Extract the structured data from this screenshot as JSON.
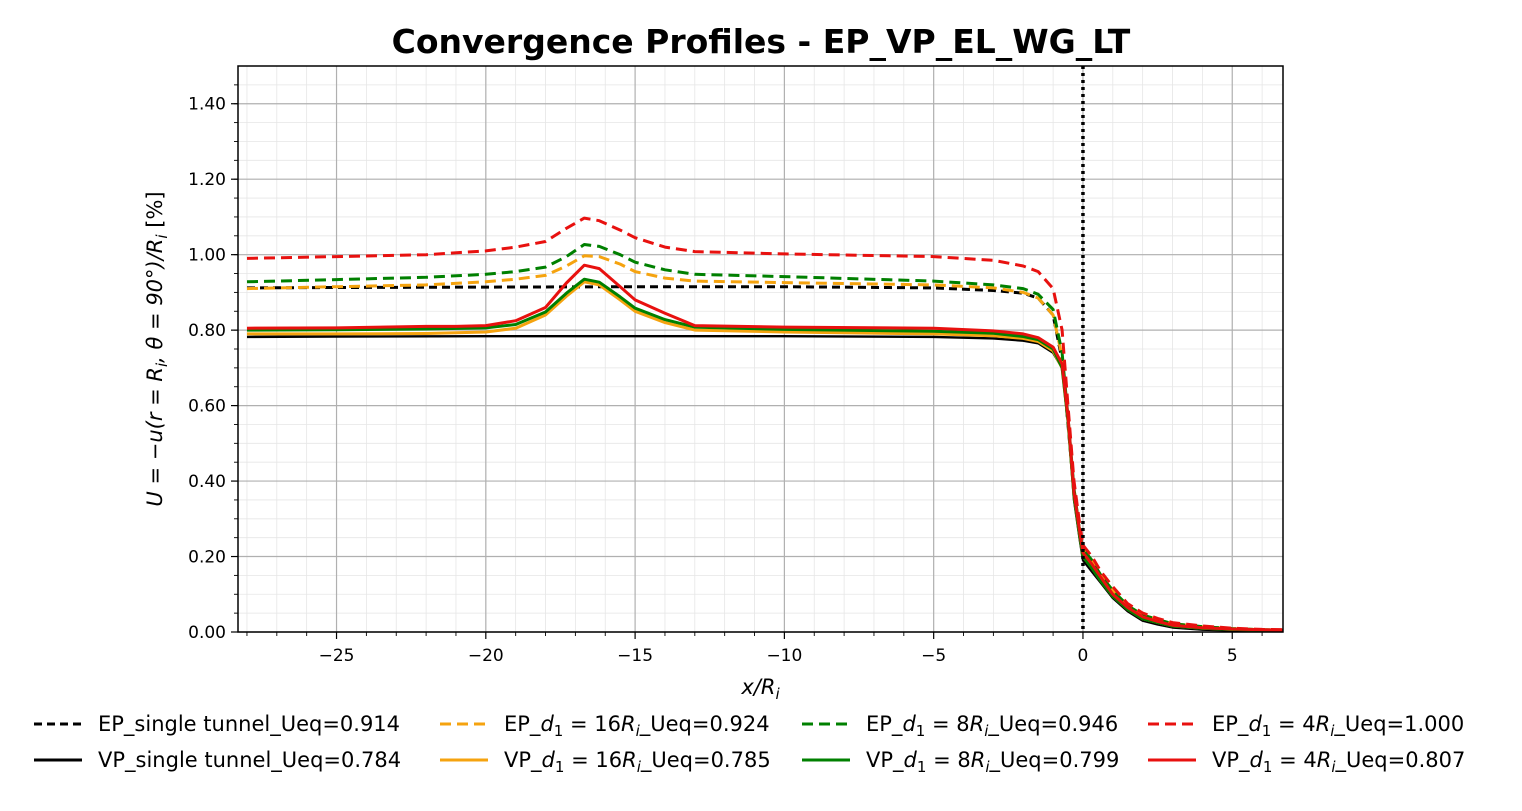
{
  "chart_data": {
    "type": "line",
    "title": "Convergence Profiles - EP_VP_EL_WG_LT",
    "xlabel": "x/R_i",
    "ylabel": "U = −u(r = R_i, θ = 90°)/R_i [%]",
    "xlim": [
      -28.3,
      6.7
    ],
    "ylim": [
      0.0,
      1.5
    ],
    "xticks": [
      -25,
      -20,
      -15,
      -10,
      -5,
      0,
      5
    ],
    "xtick_labels": [
      "−25",
      "−20",
      "−15",
      "−10",
      "−5",
      "0",
      "5"
    ],
    "yticks": [
      0.0,
      0.2,
      0.4,
      0.6,
      0.8,
      1.0,
      1.2,
      1.4
    ],
    "ytick_labels": [
      "0.00",
      "0.20",
      "0.40",
      "0.60",
      "0.80",
      "1.00",
      "1.20",
      "1.40"
    ],
    "grid": "major and minor",
    "vertical_marker": {
      "x": 0,
      "style": "dotted",
      "color": "#000000"
    },
    "legend_position": "bottom, 4 columns",
    "series": [
      {
        "name": "EP_single tunnel_Ueq=0.914",
        "color": "#000000",
        "style": "dashed",
        "points": [
          [
            -28,
            0.912
          ],
          [
            -25,
            0.913
          ],
          [
            -20,
            0.914
          ],
          [
            -15,
            0.915
          ],
          [
            -10,
            0.915
          ],
          [
            -5,
            0.912
          ],
          [
            -3,
            0.905
          ],
          [
            -2,
            0.898
          ],
          [
            -1.5,
            0.885
          ],
          [
            -1,
            0.84
          ],
          [
            -0.7,
            0.72
          ],
          [
            -0.5,
            0.55
          ],
          [
            -0.3,
            0.37
          ],
          [
            -0.1,
            0.25
          ],
          [
            0,
            0.21
          ],
          [
            0.3,
            0.18
          ],
          [
            0.6,
            0.14
          ],
          [
            1,
            0.1
          ],
          [
            1.5,
            0.065
          ],
          [
            2,
            0.04
          ],
          [
            2.5,
            0.03
          ],
          [
            3,
            0.02
          ],
          [
            4,
            0.012
          ],
          [
            5,
            0.008
          ],
          [
            6,
            0.005
          ],
          [
            6.7,
            0.004
          ]
        ]
      },
      {
        "name": "VP_single tunnel_Ueq=0.784",
        "color": "#000000",
        "style": "solid",
        "points": [
          [
            -28,
            0.782
          ],
          [
            -25,
            0.783
          ],
          [
            -20,
            0.784
          ],
          [
            -15,
            0.784
          ],
          [
            -10,
            0.784
          ],
          [
            -5,
            0.782
          ],
          [
            -3,
            0.778
          ],
          [
            -2,
            0.772
          ],
          [
            -1.5,
            0.765
          ],
          [
            -1,
            0.74
          ],
          [
            -0.7,
            0.7
          ],
          [
            -0.5,
            0.56
          ],
          [
            -0.3,
            0.35
          ],
          [
            -0.1,
            0.24
          ],
          [
            0,
            0.19
          ],
          [
            0.3,
            0.16
          ],
          [
            0.6,
            0.13
          ],
          [
            1,
            0.09
          ],
          [
            1.5,
            0.055
          ],
          [
            2,
            0.03
          ],
          [
            2.5,
            0.02
          ],
          [
            3,
            0.012
          ],
          [
            4,
            0.006
          ],
          [
            5,
            0.004
          ],
          [
            6,
            0.003
          ],
          [
            6.7,
            0.002
          ]
        ]
      },
      {
        "name": "EP_d_1 = 16R_i_Ueq=0.924",
        "color": "#f5a30f",
        "style": "dashed",
        "points": [
          [
            -28,
            0.91
          ],
          [
            -25,
            0.915
          ],
          [
            -22,
            0.92
          ],
          [
            -20,
            0.928
          ],
          [
            -19,
            0.935
          ],
          [
            -18,
            0.945
          ],
          [
            -17.3,
            0.97
          ],
          [
            -16.7,
            0.997
          ],
          [
            -16.2,
            0.995
          ],
          [
            -15.5,
            0.975
          ],
          [
            -15,
            0.955
          ],
          [
            -14,
            0.938
          ],
          [
            -13,
            0.93
          ],
          [
            -10,
            0.926
          ],
          [
            -5,
            0.92
          ],
          [
            -3,
            0.912
          ],
          [
            -2,
            0.9
          ],
          [
            -1.5,
            0.885
          ],
          [
            -1,
            0.84
          ],
          [
            -0.7,
            0.73
          ],
          [
            -0.5,
            0.56
          ],
          [
            -0.3,
            0.38
          ],
          [
            -0.1,
            0.26
          ],
          [
            0,
            0.22
          ],
          [
            0.3,
            0.19
          ],
          [
            0.6,
            0.15
          ],
          [
            1,
            0.11
          ],
          [
            1.5,
            0.07
          ],
          [
            2,
            0.045
          ],
          [
            2.5,
            0.033
          ],
          [
            3,
            0.022
          ],
          [
            4,
            0.014
          ],
          [
            5,
            0.009
          ],
          [
            6,
            0.006
          ],
          [
            6.7,
            0.005
          ]
        ]
      },
      {
        "name": "EP_d_1 = 8R_i_Ueq=0.946",
        "color": "#008000",
        "style": "dashed",
        "points": [
          [
            -28,
            0.928
          ],
          [
            -25,
            0.934
          ],
          [
            -22,
            0.94
          ],
          [
            -20,
            0.948
          ],
          [
            -19,
            0.955
          ],
          [
            -18,
            0.967
          ],
          [
            -17.3,
            0.995
          ],
          [
            -16.7,
            1.027
          ],
          [
            -16.2,
            1.022
          ],
          [
            -15.5,
            1.0
          ],
          [
            -15,
            0.98
          ],
          [
            -14,
            0.96
          ],
          [
            -13,
            0.948
          ],
          [
            -10,
            0.942
          ],
          [
            -5,
            0.93
          ],
          [
            -3,
            0.92
          ],
          [
            -2,
            0.91
          ],
          [
            -1.5,
            0.895
          ],
          [
            -1,
            0.855
          ],
          [
            -0.7,
            0.74
          ],
          [
            -0.5,
            0.57
          ],
          [
            -0.3,
            0.38
          ],
          [
            -0.1,
            0.26
          ],
          [
            0,
            0.22
          ],
          [
            0.3,
            0.19
          ],
          [
            0.6,
            0.15
          ],
          [
            1,
            0.11
          ],
          [
            1.5,
            0.07
          ],
          [
            2,
            0.045
          ],
          [
            2.5,
            0.033
          ],
          [
            3,
            0.022
          ],
          [
            4,
            0.014
          ],
          [
            5,
            0.009
          ],
          [
            6,
            0.006
          ],
          [
            6.7,
            0.005
          ]
        ]
      },
      {
        "name": "EP_d_1 = 4R_i_Ueq=1.000",
        "color": "#e8110f",
        "style": "dashed",
        "points": [
          [
            -28,
            0.99
          ],
          [
            -25,
            0.995
          ],
          [
            -22,
            1.0
          ],
          [
            -20,
            1.01
          ],
          [
            -19,
            1.02
          ],
          [
            -18,
            1.035
          ],
          [
            -17.3,
            1.07
          ],
          [
            -16.7,
            1.097
          ],
          [
            -16.2,
            1.09
          ],
          [
            -15.5,
            1.065
          ],
          [
            -15,
            1.045
          ],
          [
            -14,
            1.02
          ],
          [
            -13,
            1.008
          ],
          [
            -10,
            1.002
          ],
          [
            -5,
            0.995
          ],
          [
            -3,
            0.985
          ],
          [
            -2,
            0.97
          ],
          [
            -1.5,
            0.955
          ],
          [
            -1,
            0.91
          ],
          [
            -0.7,
            0.8
          ],
          [
            -0.5,
            0.6
          ],
          [
            -0.3,
            0.4
          ],
          [
            -0.1,
            0.28
          ],
          [
            0,
            0.23
          ],
          [
            0.3,
            0.2
          ],
          [
            0.6,
            0.16
          ],
          [
            1,
            0.12
          ],
          [
            1.5,
            0.075
          ],
          [
            2,
            0.05
          ],
          [
            2.5,
            0.036
          ],
          [
            3,
            0.025
          ],
          [
            4,
            0.016
          ],
          [
            5,
            0.01
          ],
          [
            6,
            0.007
          ],
          [
            6.7,
            0.006
          ]
        ]
      },
      {
        "name": "VP_d_1 = 16R_i_Ueq=0.785",
        "color": "#f5a30f",
        "style": "solid",
        "points": [
          [
            -28,
            0.79
          ],
          [
            -25,
            0.79
          ],
          [
            -22,
            0.791
          ],
          [
            -20,
            0.795
          ],
          [
            -19,
            0.805
          ],
          [
            -18,
            0.84
          ],
          [
            -17.3,
            0.89
          ],
          [
            -16.7,
            0.928
          ],
          [
            -16.2,
            0.92
          ],
          [
            -15.5,
            0.88
          ],
          [
            -15,
            0.85
          ],
          [
            -14,
            0.82
          ],
          [
            -13,
            0.8
          ],
          [
            -10,
            0.795
          ],
          [
            -5,
            0.79
          ],
          [
            -3,
            0.785
          ],
          [
            -2,
            0.778
          ],
          [
            -1.5,
            0.77
          ],
          [
            -1,
            0.745
          ],
          [
            -0.7,
            0.7
          ],
          [
            -0.5,
            0.56
          ],
          [
            -0.3,
            0.36
          ],
          [
            -0.1,
            0.25
          ],
          [
            0,
            0.2
          ],
          [
            0.3,
            0.17
          ],
          [
            0.6,
            0.135
          ],
          [
            1,
            0.095
          ],
          [
            1.5,
            0.06
          ],
          [
            2,
            0.035
          ],
          [
            2.5,
            0.025
          ],
          [
            3,
            0.016
          ],
          [
            4,
            0.01
          ],
          [
            5,
            0.007
          ],
          [
            6,
            0.005
          ],
          [
            6.7,
            0.004
          ]
        ]
      },
      {
        "name": "VP_d_1 = 8R_i_Ueq=0.799",
        "color": "#008000",
        "style": "solid",
        "points": [
          [
            -28,
            0.8
          ],
          [
            -25,
            0.801
          ],
          [
            -22,
            0.803
          ],
          [
            -20,
            0.806
          ],
          [
            -19,
            0.815
          ],
          [
            -18,
            0.848
          ],
          [
            -17.3,
            0.898
          ],
          [
            -16.7,
            0.935
          ],
          [
            -16.2,
            0.927
          ],
          [
            -15.5,
            0.888
          ],
          [
            -15,
            0.858
          ],
          [
            -14,
            0.828
          ],
          [
            -13,
            0.808
          ],
          [
            -10,
            0.802
          ],
          [
            -5,
            0.797
          ],
          [
            -3,
            0.792
          ],
          [
            -2,
            0.783
          ],
          [
            -1.5,
            0.775
          ],
          [
            -1,
            0.75
          ],
          [
            -0.7,
            0.7
          ],
          [
            -0.5,
            0.56
          ],
          [
            -0.3,
            0.36
          ],
          [
            -0.1,
            0.25
          ],
          [
            0,
            0.2
          ],
          [
            0.3,
            0.17
          ],
          [
            0.6,
            0.135
          ],
          [
            1,
            0.095
          ],
          [
            1.5,
            0.06
          ],
          [
            2,
            0.035
          ],
          [
            2.5,
            0.025
          ],
          [
            3,
            0.016
          ],
          [
            4,
            0.01
          ],
          [
            5,
            0.007
          ],
          [
            6,
            0.005
          ],
          [
            6.7,
            0.004
          ]
        ]
      },
      {
        "name": "VP_d_1 = 4R_i_Ueq=0.807",
        "color": "#e8110f",
        "style": "solid",
        "points": [
          [
            -28,
            0.805
          ],
          [
            -25,
            0.806
          ],
          [
            -22,
            0.81
          ],
          [
            -21,
            0.81
          ],
          [
            -20,
            0.812
          ],
          [
            -19,
            0.825
          ],
          [
            -18,
            0.86
          ],
          [
            -17.3,
            0.925
          ],
          [
            -16.7,
            0.972
          ],
          [
            -16.2,
            0.963
          ],
          [
            -15.5,
            0.915
          ],
          [
            -15,
            0.88
          ],
          [
            -14,
            0.845
          ],
          [
            -13,
            0.812
          ],
          [
            -10,
            0.808
          ],
          [
            -5,
            0.805
          ],
          [
            -3,
            0.798
          ],
          [
            -2,
            0.79
          ],
          [
            -1.5,
            0.78
          ],
          [
            -1,
            0.755
          ],
          [
            -0.7,
            0.71
          ],
          [
            -0.5,
            0.57
          ],
          [
            -0.3,
            0.37
          ],
          [
            -0.1,
            0.26
          ],
          [
            0,
            0.21
          ],
          [
            0.3,
            0.18
          ],
          [
            0.6,
            0.145
          ],
          [
            1,
            0.1
          ],
          [
            1.5,
            0.065
          ],
          [
            2,
            0.04
          ],
          [
            2.5,
            0.028
          ],
          [
            3,
            0.018
          ],
          [
            4,
            0.011
          ],
          [
            5,
            0.008
          ],
          [
            6,
            0.006
          ],
          [
            6.7,
            0.005
          ]
        ]
      }
    ],
    "legend": [
      {
        "style": "dashed",
        "color": "#000000",
        "prefix": "EP_single tunnel_Ueq=0.914",
        "sub": "",
        "suffix": ""
      },
      {
        "style": "dashed",
        "color": "#f5a30f",
        "prefix": "EP_",
        "sub": "16",
        "suffix": "_Ueq=0.924"
      },
      {
        "style": "dashed",
        "color": "#008000",
        "prefix": "EP_",
        "sub": "8",
        "suffix": "_Ueq=0.946"
      },
      {
        "style": "dashed",
        "color": "#e8110f",
        "prefix": "EP_",
        "sub": "4",
        "suffix": "_Ueq=1.000"
      },
      {
        "style": "solid",
        "color": "#000000",
        "prefix": "VP_single tunnel_Ueq=0.784",
        "sub": "",
        "suffix": ""
      },
      {
        "style": "solid",
        "color": "#f5a30f",
        "prefix": "VP_",
        "sub": "16",
        "suffix": "_Ueq=0.785"
      },
      {
        "style": "solid",
        "color": "#008000",
        "prefix": "VP_",
        "sub": "8",
        "suffix": "_Ueq=0.799"
      },
      {
        "style": "solid",
        "color": "#e8110f",
        "prefix": "VP_",
        "sub": "4",
        "suffix": "_Ueq=0.807"
      }
    ]
  }
}
